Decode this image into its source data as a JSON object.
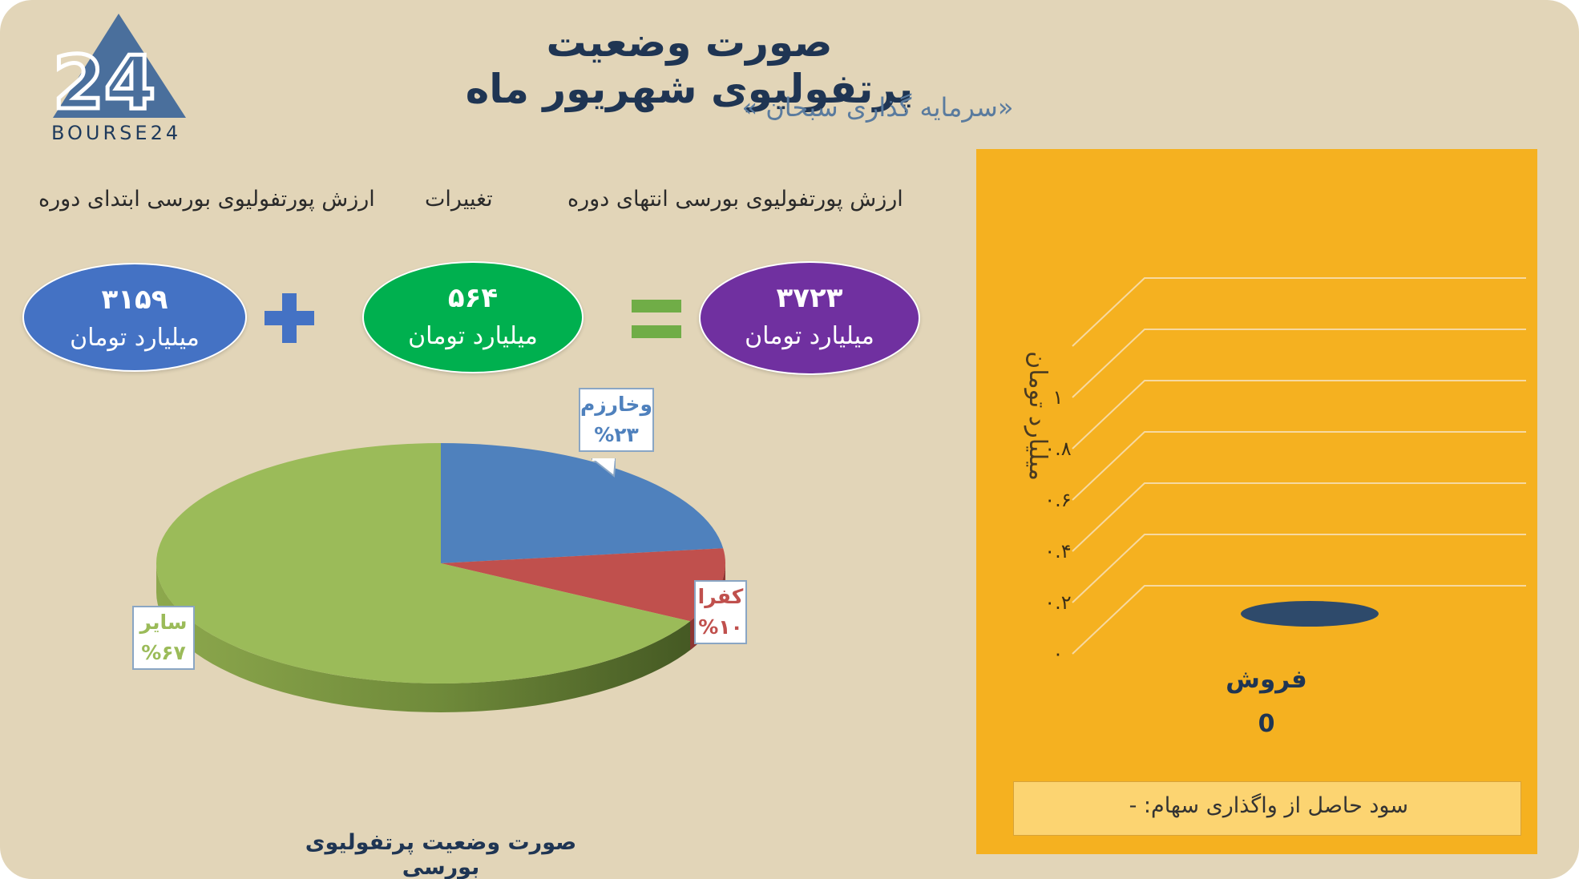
{
  "header": {
    "title": "صورت وضعیت پرتفولیوی شهریور ماه",
    "subtitle": "«سرمایه گذاری سبحان »"
  },
  "logo": {
    "mark": "24",
    "text": "BOURSE24"
  },
  "labels": {
    "start": "ارزش پورتفولیوی بورسی ابتدای دوره",
    "change": "تغییرات",
    "end": "ارزش پورتفولیوی بورسی انتهای دوره"
  },
  "values": {
    "start": {
      "number": "۳۱۵۹",
      "unit": "میلیارد تومان",
      "color": "#4472c4"
    },
    "change": {
      "number": "۵۶۴",
      "unit": "میلیارد تومان",
      "color": "#00b04f"
    },
    "end": {
      "number": "۳۷۲۳",
      "unit": "میلیارد تومان",
      "color": "#7030a0"
    }
  },
  "operators": {
    "plus_color": "#4472c4",
    "equals_color": "#70ad47"
  },
  "chart_data": [
    {
      "type": "pie",
      "title": "صورت وضعیت پرتفولیوی بورسی",
      "slices": [
        {
          "name": "وخارزم",
          "value": 23,
          "label": "%۲۳",
          "color": "#4f81bd"
        },
        {
          "name": "کفرا",
          "value": 10,
          "label": "%۱۰",
          "color": "#c0504d"
        },
        {
          "name": "سایر",
          "value": 67,
          "label": "%۶۷",
          "color": "#9bbb59"
        }
      ]
    },
    {
      "type": "bar",
      "categories": [
        "فروش"
      ],
      "values": [
        0
      ],
      "value_labels": [
        "0"
      ],
      "ylabel": "میلیارد تومان",
      "ylim": [
        0,
        1
      ],
      "yticks": [
        "۰",
        "۰.۲",
        "۰.۴",
        "۰.۶",
        "۰.۸",
        "۱"
      ],
      "grid": true,
      "bar_color": "#2e4a6b",
      "background": "#f5b120"
    }
  ],
  "profit": {
    "text": "سود حاصل از واگذاری سهام: -"
  }
}
